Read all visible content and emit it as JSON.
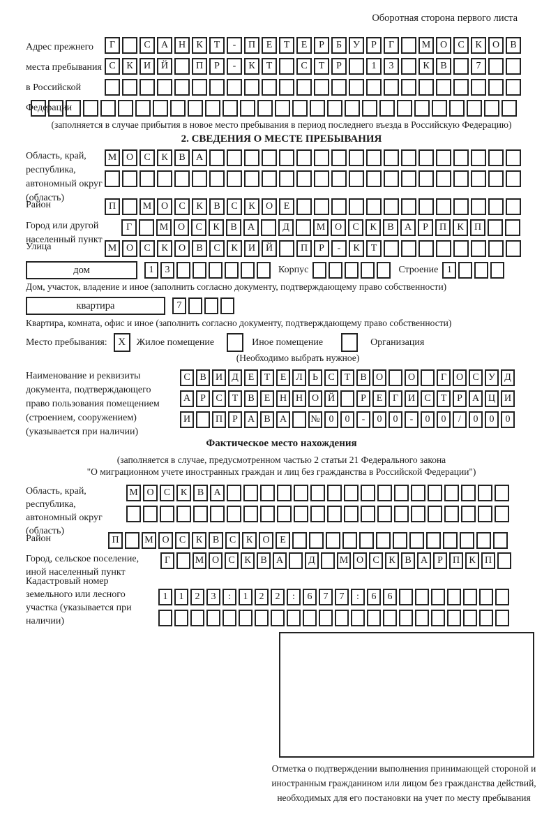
{
  "header": {
    "note": "Оборотная сторона первого листа"
  },
  "prev_address": {
    "label": "Адрес прежнего места пребывания в Российской Федерации",
    "row1": {
      "chars": "Г САНКТ-ПЕТЕРБУРГ МОСКОВ",
      "len": 24
    },
    "row2": {
      "chars": "СКИЙ ПР-КТ СТР 13 КВ 7",
      "len": 24
    },
    "row3": {
      "chars": "",
      "len": 24
    },
    "row4": {
      "chars": "",
      "len": 28
    },
    "note": "(заполняется в случае прибытия в новое место пребывания в период последнего въезда в Российскую Федерацию)"
  },
  "section2": {
    "title": "2. СВЕДЕНИЯ О МЕСТЕ ПРЕБЫВАНИЯ",
    "region": {
      "label": "Область, край, республика, автономный округ (область)",
      "row1": {
        "chars": "МОСКВА",
        "len": 24
      },
      "row2": {
        "chars": "",
        "len": 24
      }
    },
    "district": {
      "label": "Район",
      "row": {
        "chars": "П МОСКВСКОЕ",
        "len": 24
      }
    },
    "city": {
      "label": "Город или другой населенный пункт",
      "row": {
        "chars": "Г МОСКВА Д МОСКВАРПКП",
        "len": 23
      }
    },
    "street": {
      "label": "Улица",
      "row": {
        "chars": "МОСКОВСКИЙ ПР-КТ",
        "len": 24
      }
    },
    "house": {
      "box_label": "дом",
      "row": {
        "chars": "13",
        "len": 8
      },
      "korpus_label": "Корпус",
      "korpus_row": {
        "chars": "",
        "len": 5
      },
      "stroenie_label": "Строение",
      "stroenie_row": {
        "chars": "1",
        "len": 4
      },
      "note": "Дом, участок, владение и иное (заполнить согласно документу, подтверждающему право собственности)"
    },
    "apartment": {
      "box_label": "квартира",
      "row": {
        "chars": "7",
        "len": 4
      },
      "note": "Квартира, комната, офис и иное (заполнить согласно документу, подтверждающему право собственности)"
    },
    "stay_type": {
      "label": "Место пребывания:",
      "options": [
        {
          "mark": "X",
          "label": "Жилое помещение"
        },
        {
          "mark": "",
          "label": "Иное помещение"
        },
        {
          "mark": "",
          "label": "Организация"
        }
      ],
      "note": "(Необходимо выбрать нужное)"
    },
    "document": {
      "label": "Наименование и реквизиты документа, подтверждающего право пользования помещением (строением, сооружением) (указывается при наличии)",
      "row1": {
        "chars": "СВИДЕТЕЛЬСТВО О ГОСУД",
        "len": 21
      },
      "row2": {
        "chars": "АРСТВЕННОЙ РЕГИСТРАЦИ",
        "len": 21
      },
      "row3": {
        "chars": "И ПРАВА №00-00-00/000",
        "len": 21
      }
    }
  },
  "actual_location": {
    "title": "Фактическое место нахождения",
    "note_line1": "(заполняется в случае, предусмотренном частью 2 статьи 21 Федерального закона",
    "note_line2": "\"О миграционном учете иностранных граждан и лиц без гражданства в Российской Федерации\")",
    "region": {
      "label": "Область, край, республика, автономный округ (область)",
      "row1": {
        "chars": "МОСКВА",
        "len": 23
      },
      "row2": {
        "chars": "",
        "len": 23
      }
    },
    "district": {
      "label": "Район",
      "row": {
        "chars": "П МОСКВСКОЕ",
        "len": 24
      }
    },
    "city": {
      "label": "Город, сельское поселение, иной населенный пункт",
      "row": {
        "chars": "Г МОСКВА Д МОСКВАРПКП",
        "len": 22
      }
    },
    "cadastre": {
      "label": "Кадастровый номер земельного или лесного участка (указывается при наличии)",
      "row1": {
        "chars": "1123:122:677:66",
        "len": 22
      },
      "row2": {
        "chars": "",
        "len": 22
      }
    },
    "stamp_note": "Отметка о подтверждении выполнения принимающей стороной и иностранным гражданином или лицом без гражданства действий, необходимых для его постановки на учет по месту пребывания"
  }
}
